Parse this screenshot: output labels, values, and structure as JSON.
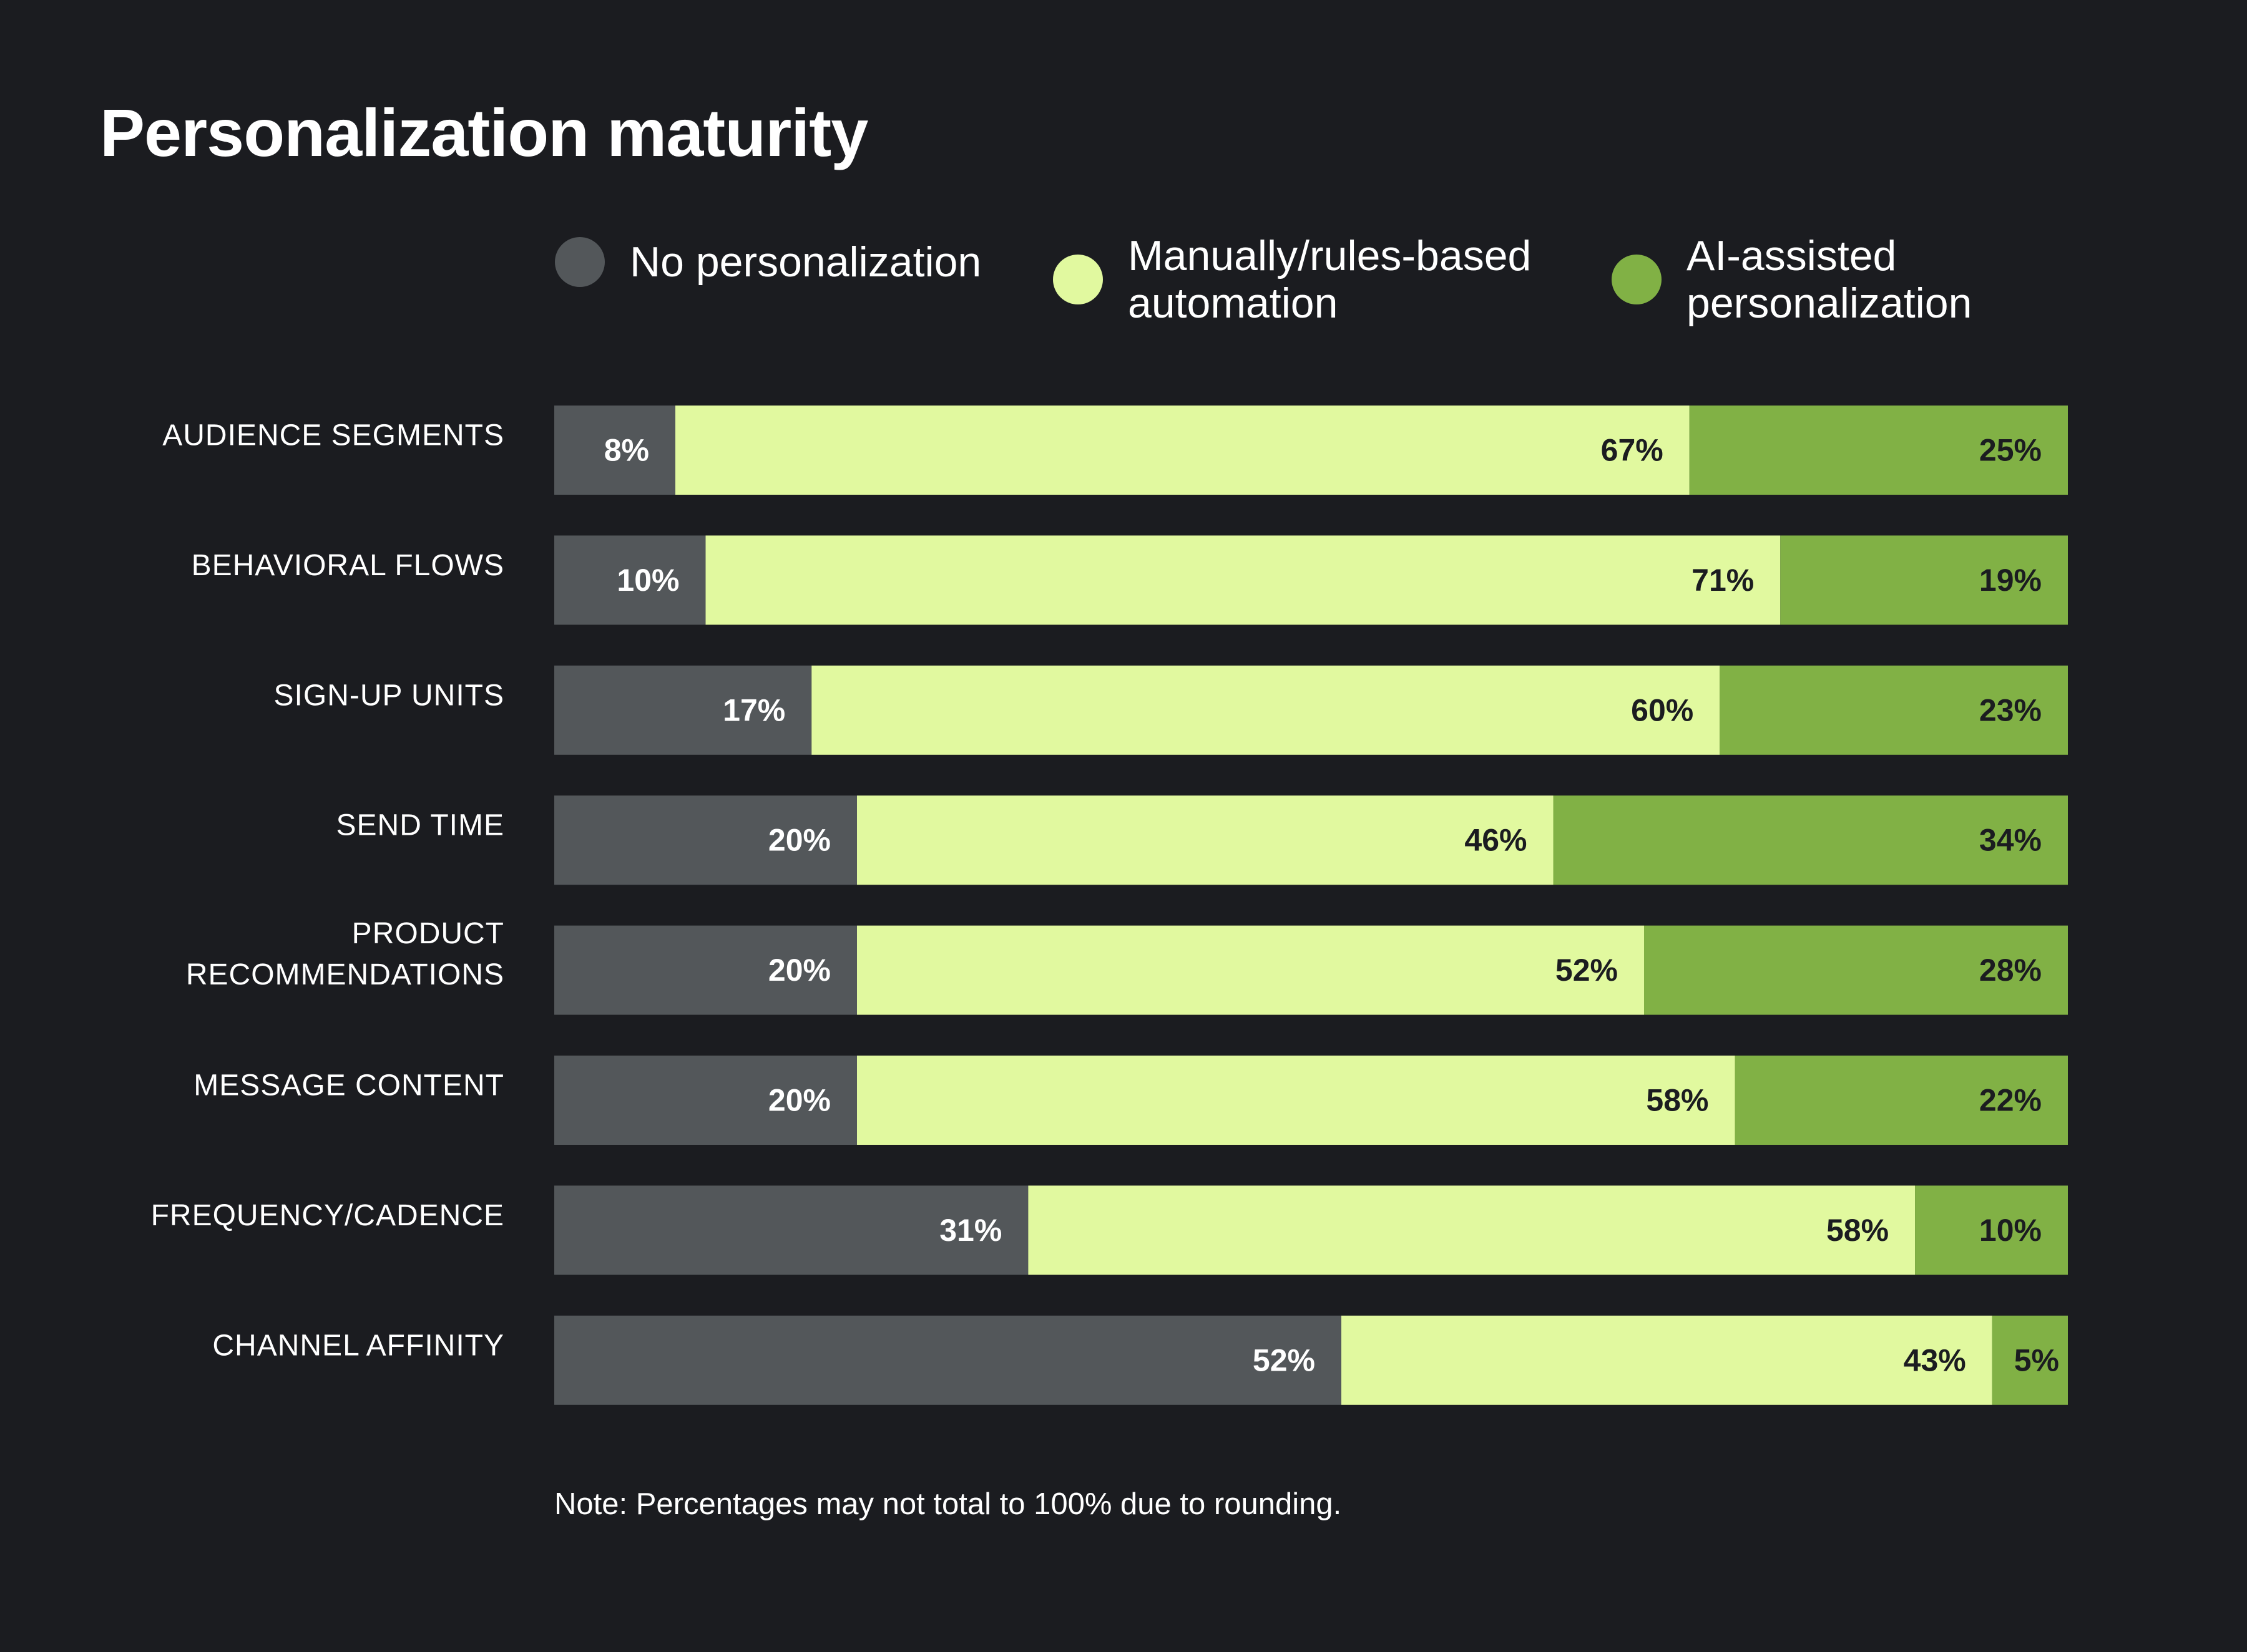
{
  "title": "Personalization maturity",
  "legend": [
    {
      "label": "No personalization",
      "color": "#53575a"
    },
    {
      "label": "Manually/rules-based\nautomation",
      "color": "#e1f99f"
    },
    {
      "label": "AI-assisted\npersonalization",
      "color": "#81b145"
    }
  ],
  "note": "Note: Percentages may not total to 100% due to rounding.",
  "chart_data": {
    "type": "bar",
    "orientation": "horizontal",
    "stacked": true,
    "title": "Personalization maturity",
    "categories": [
      "AUDIENCE SEGMENTS",
      "BEHAVIORAL FLOWS",
      "SIGN-UP UNITS",
      "SEND TIME",
      "PRODUCT\nRECOMMENDATIONS",
      "MESSAGE CONTENT",
      "FREQUENCY/CADENCE",
      "CHANNEL AFFINITY"
    ],
    "series": [
      {
        "name": "No personalization",
        "color": "#53575a",
        "label_color": "#ffffff",
        "values": [
          8,
          10,
          17,
          20,
          20,
          20,
          31,
          52
        ]
      },
      {
        "name": "Manually/rules-based automation",
        "color": "#e1f99f",
        "label_color": "#1b1c20",
        "values": [
          67,
          71,
          60,
          46,
          52,
          58,
          58,
          43
        ]
      },
      {
        "name": "AI-assisted personalization",
        "color": "#81b145",
        "label_color": "#1b1c20",
        "values": [
          25,
          19,
          23,
          34,
          28,
          22,
          10,
          5
        ]
      }
    ],
    "unit": "%",
    "grid": false,
    "legend_position": "top"
  }
}
